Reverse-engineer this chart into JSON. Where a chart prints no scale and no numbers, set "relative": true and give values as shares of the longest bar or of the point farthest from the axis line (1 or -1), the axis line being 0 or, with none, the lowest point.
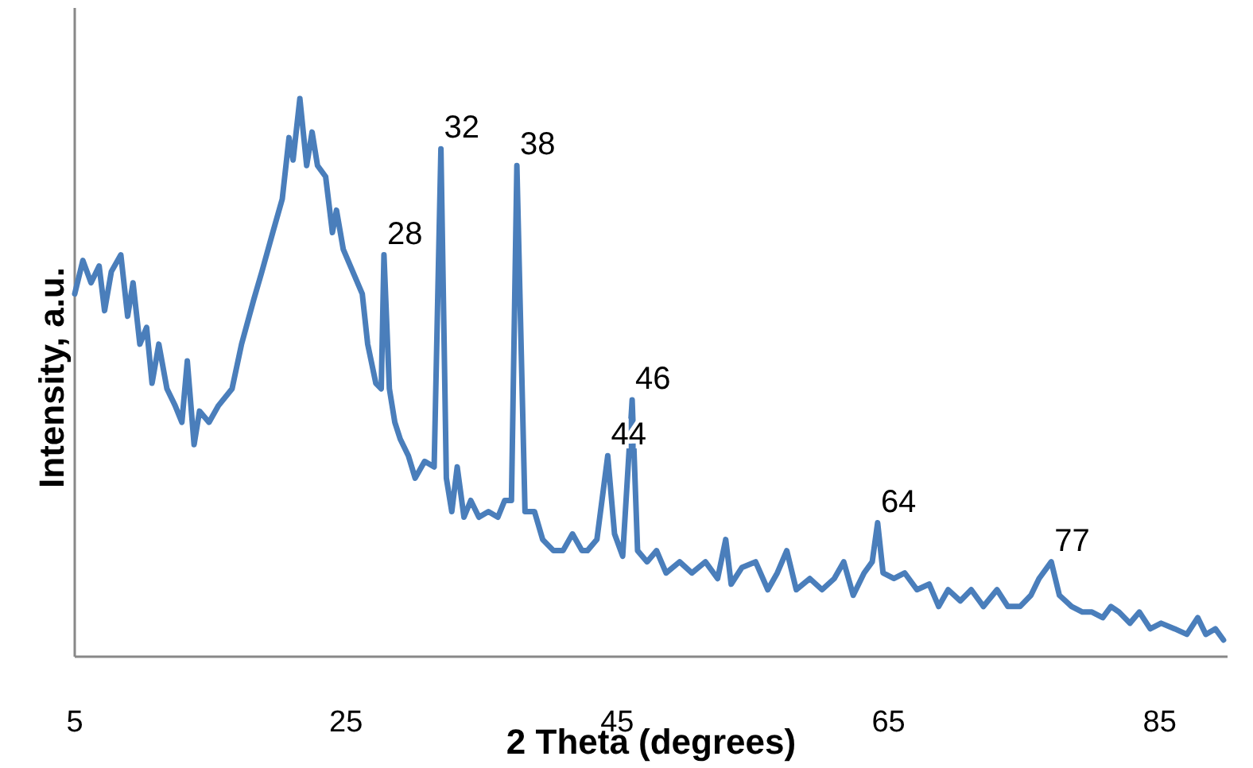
{
  "chart_data": {
    "type": "line",
    "xlabel": "2 Theta (degrees)",
    "ylabel": "Intensity, a.u.",
    "relative": true,
    "xlim": [
      5,
      90
    ],
    "xticks": [
      5,
      25,
      45,
      65,
      85
    ],
    "grid": false,
    "marker": "none",
    "line_style": "solid",
    "series": [
      {
        "color": "#4a7ebb",
        "x": [
          5.0,
          5.6,
          6.2,
          6.8,
          7.2,
          7.7,
          8.4,
          8.9,
          9.3,
          9.8,
          10.3,
          10.7,
          11.2,
          11.8,
          12.4,
          12.9,
          13.3,
          13.8,
          14.2,
          14.9,
          15.6,
          16.6,
          17.3,
          18.2,
          18.8,
          19.6,
          20.3,
          20.8,
          21.1,
          21.6,
          22.1,
          22.5,
          22.9,
          23.5,
          24.0,
          24.3,
          24.8,
          25.5,
          26.2,
          26.6,
          27.2,
          27.6,
          27.8,
          28.2,
          28.6,
          29.0,
          29.6,
          30.1,
          30.8,
          31.5,
          32.0,
          32.4,
          32.8,
          33.2,
          33.7,
          34.2,
          34.8,
          35.5,
          36.2,
          36.7,
          37.2,
          37.6,
          38.2,
          38.9,
          39.5,
          40.3,
          41.0,
          41.7,
          42.4,
          42.8,
          43.5,
          44.3,
          44.8,
          45.4,
          46.1,
          46.5,
          47.2,
          47.9,
          48.6,
          49.6,
          50.5,
          51.5,
          52.4,
          53.0,
          53.4,
          54.2,
          55.2,
          56.1,
          56.8,
          57.5,
          58.2,
          59.2,
          60.1,
          61.0,
          61.7,
          62.4,
          63.2,
          63.8,
          64.2,
          64.6,
          65.4,
          66.2,
          67.1,
          68.0,
          68.7,
          69.4,
          70.3,
          71.1,
          72.0,
          73.0,
          73.8,
          74.7,
          75.5,
          76.1,
          77.0,
          77.6,
          78.5,
          79.3,
          80.0,
          80.8,
          81.4,
          82.0,
          82.8,
          83.5,
          84.3,
          85.1,
          86.1,
          87.0,
          87.8,
          88.4,
          89.1,
          89.7
        ],
        "values": [
          0.65,
          0.71,
          0.67,
          0.7,
          0.62,
          0.69,
          0.72,
          0.61,
          0.67,
          0.56,
          0.59,
          0.49,
          0.56,
          0.48,
          0.45,
          0.42,
          0.53,
          0.38,
          0.44,
          0.42,
          0.45,
          0.48,
          0.56,
          0.64,
          0.69,
          0.76,
          0.82,
          0.93,
          0.89,
          1.0,
          0.88,
          0.94,
          0.88,
          0.86,
          0.76,
          0.8,
          0.73,
          0.69,
          0.65,
          0.56,
          0.49,
          0.48,
          0.72,
          0.48,
          0.42,
          0.39,
          0.36,
          0.32,
          0.35,
          0.34,
          0.91,
          0.32,
          0.26,
          0.34,
          0.25,
          0.28,
          0.25,
          0.26,
          0.25,
          0.28,
          0.28,
          0.88,
          0.26,
          0.26,
          0.21,
          0.19,
          0.19,
          0.22,
          0.19,
          0.19,
          0.21,
          0.36,
          0.22,
          0.18,
          0.46,
          0.19,
          0.17,
          0.19,
          0.15,
          0.17,
          0.15,
          0.17,
          0.14,
          0.21,
          0.13,
          0.16,
          0.17,
          0.12,
          0.15,
          0.19,
          0.12,
          0.14,
          0.12,
          0.14,
          0.17,
          0.11,
          0.15,
          0.17,
          0.24,
          0.15,
          0.14,
          0.15,
          0.12,
          0.13,
          0.09,
          0.12,
          0.1,
          0.12,
          0.09,
          0.12,
          0.09,
          0.09,
          0.11,
          0.14,
          0.17,
          0.11,
          0.09,
          0.08,
          0.08,
          0.07,
          0.09,
          0.08,
          0.06,
          0.08,
          0.05,
          0.06,
          0.05,
          0.04,
          0.07,
          0.04,
          0.05,
          0.03
        ]
      }
    ],
    "annotations": [
      {
        "text": "28",
        "x": 27.8,
        "y": 0.72
      },
      {
        "text": "32",
        "x": 32.0,
        "y": 0.91
      },
      {
        "text": "38",
        "x": 37.6,
        "y": 0.88
      },
      {
        "text": "44",
        "x": 44.3,
        "y": 0.36
      },
      {
        "text": "46",
        "x": 46.1,
        "y": 0.46
      },
      {
        "text": "64",
        "x": 64.2,
        "y": 0.24
      },
      {
        "text": "77",
        "x": 77.0,
        "y": 0.17
      }
    ]
  }
}
